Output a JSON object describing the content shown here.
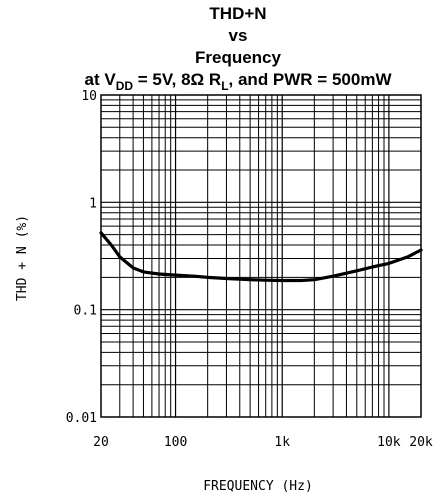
{
  "chart_data": {
    "type": "line",
    "title_lines": [
      "THD+N",
      "vs",
      "Frequency"
    ],
    "subtitle": {
      "prefix": "at V",
      "vsub": "DD",
      "mid": " = 5V, 8Ω R",
      "rsub": "L",
      "suffix": ", and PWR = 500mW"
    },
    "xlabel": "FREQUENCY (Hz)",
    "ylabel": "THD + N (%)",
    "x_scale": "log",
    "y_scale": "log",
    "xlim": [
      20,
      20000
    ],
    "ylim": [
      0.01,
      10
    ],
    "grid": true,
    "x_ticks": [
      {
        "value": 20,
        "label": "20"
      },
      {
        "value": 100,
        "label": "100"
      },
      {
        "value": 1000,
        "label": "1k"
      },
      {
        "value": 10000,
        "label": "10k"
      },
      {
        "value": 20000,
        "label": "20k"
      }
    ],
    "y_ticks": [
      {
        "value": 10,
        "label": "10"
      },
      {
        "value": 1,
        "label": "1"
      },
      {
        "value": 0.1,
        "label": "0.1"
      },
      {
        "value": 0.01,
        "label": "0.01"
      }
    ],
    "series": [
      {
        "x": [
          20,
          25,
          30,
          40,
          50,
          70,
          100,
          150,
          200,
          300,
          500,
          700,
          1000,
          1500,
          2000,
          3000,
          5000,
          7000,
          10000,
          15000,
          20000
        ],
        "y": [
          0.52,
          0.4,
          0.31,
          0.245,
          0.225,
          0.215,
          0.21,
          0.205,
          0.2,
          0.195,
          0.19,
          0.188,
          0.187,
          0.187,
          0.19,
          0.205,
          0.23,
          0.25,
          0.27,
          0.31,
          0.36
        ]
      }
    ]
  }
}
